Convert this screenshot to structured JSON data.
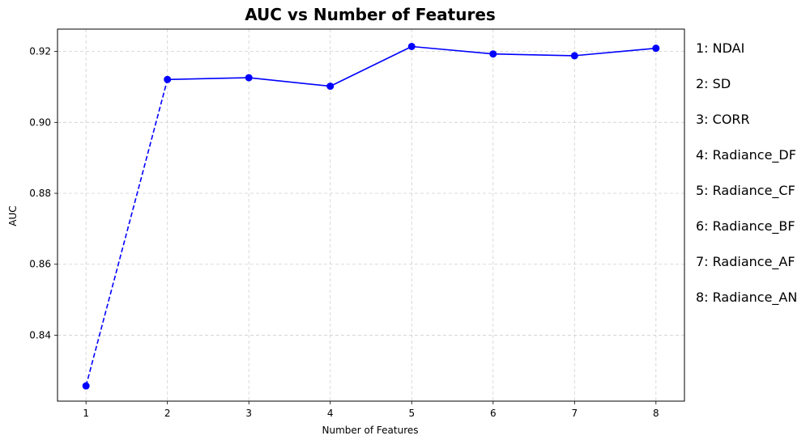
{
  "chart_data": {
    "type": "line",
    "title": "AUC vs Number of Features",
    "xlabel": "Number of Features",
    "ylabel": "AUC",
    "x": [
      1,
      2,
      3,
      4,
      5,
      6,
      7,
      8
    ],
    "xticks": [
      "1",
      "2",
      "3",
      "4",
      "5",
      "6",
      "7",
      "8"
    ],
    "yticks": [
      "0.84",
      "0.86",
      "0.88",
      "0.90",
      "0.92"
    ],
    "ytick_values": [
      0.84,
      0.86,
      0.88,
      0.9,
      0.92
    ],
    "xlim": [
      0.65,
      8.35
    ],
    "ylim": [
      0.8214,
      0.9263
    ],
    "grid": true,
    "series": [
      {
        "values": [
          0.8257,
          0.9121,
          0.9126,
          0.9102,
          0.9214,
          0.9193,
          0.9188,
          0.9209
        ],
        "color": "#0000ff",
        "dashed_segment_until_x": 2
      }
    ],
    "annotations": [
      "1: NDAI",
      "2: SD",
      "3: CORR",
      "4: Radiance_DF",
      "5: Radiance_CF",
      "6: Radiance_BF",
      "7: Radiance_AF",
      "8: Radiance_AN"
    ]
  }
}
